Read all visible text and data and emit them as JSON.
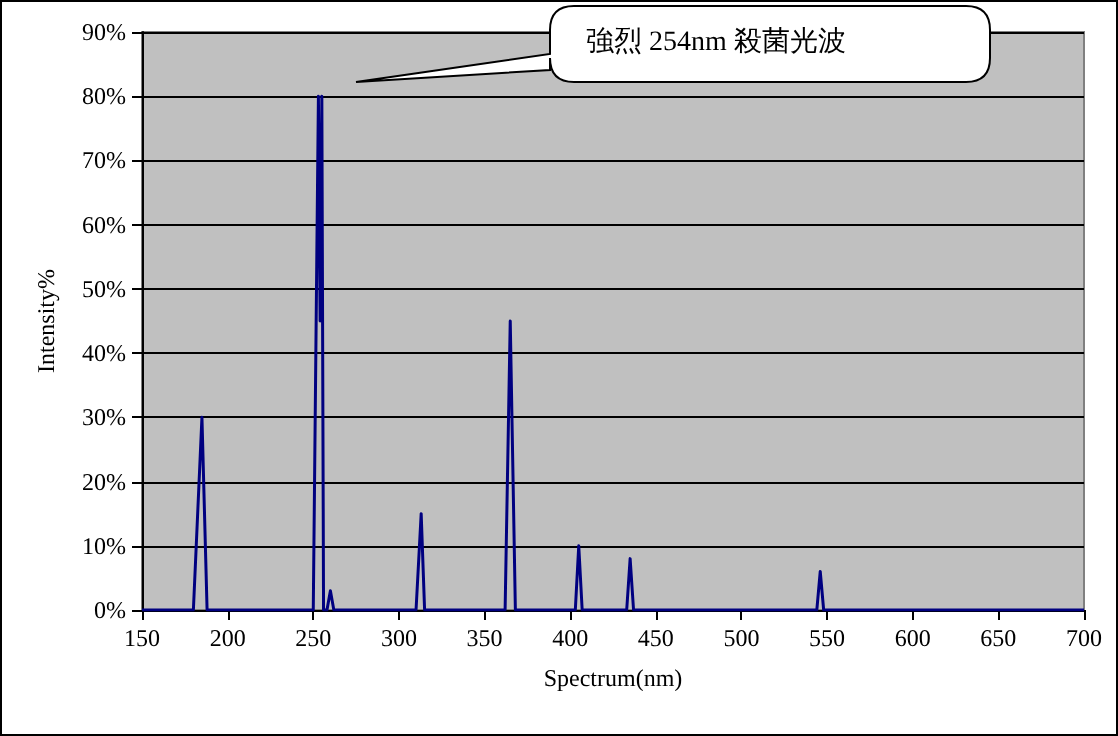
{
  "chart_data": {
    "type": "line",
    "xlabel": "Spectrum(nm)",
    "ylabel": "Intensity%",
    "annotations": [
      "強烈 254nm 殺菌光波"
    ],
    "series": [
      {
        "color": "#000080",
        "x": [
          150,
          180,
          185,
          188,
          250,
          253,
          254,
          255,
          256,
          258,
          260,
          262,
          310,
          313,
          315,
          362,
          365,
          368,
          403,
          405,
          407,
          433,
          435,
          437,
          544,
          546,
          548,
          700
        ],
        "values": [
          0,
          0,
          30,
          0,
          0,
          80,
          45,
          80,
          0,
          0,
          3,
          0,
          0,
          15,
          0,
          0,
          45,
          0,
          0,
          10,
          0,
          0,
          8,
          0,
          0,
          6,
          0,
          0
        ]
      }
    ],
    "xlim": [
      150,
      700
    ],
    "xticks": [
      150,
      200,
      250,
      300,
      350,
      400,
      450,
      500,
      550,
      600,
      650,
      700
    ],
    "ylim": [
      0,
      90
    ],
    "yticks": [
      {
        "value": 0,
        "label": "0%"
      },
      {
        "value": 10,
        "label": "10%"
      },
      {
        "value": 20,
        "label": "20%"
      },
      {
        "value": 30,
        "label": "30%"
      },
      {
        "value": 40,
        "label": "40%"
      },
      {
        "value": 50,
        "label": "50%"
      },
      {
        "value": 60,
        "label": "60%"
      },
      {
        "value": 70,
        "label": "70%"
      },
      {
        "value": 80,
        "label": "80%"
      },
      {
        "value": 90,
        "label": "90%"
      }
    ],
    "grid": "y",
    "marker": "none",
    "line_style": "solid"
  }
}
